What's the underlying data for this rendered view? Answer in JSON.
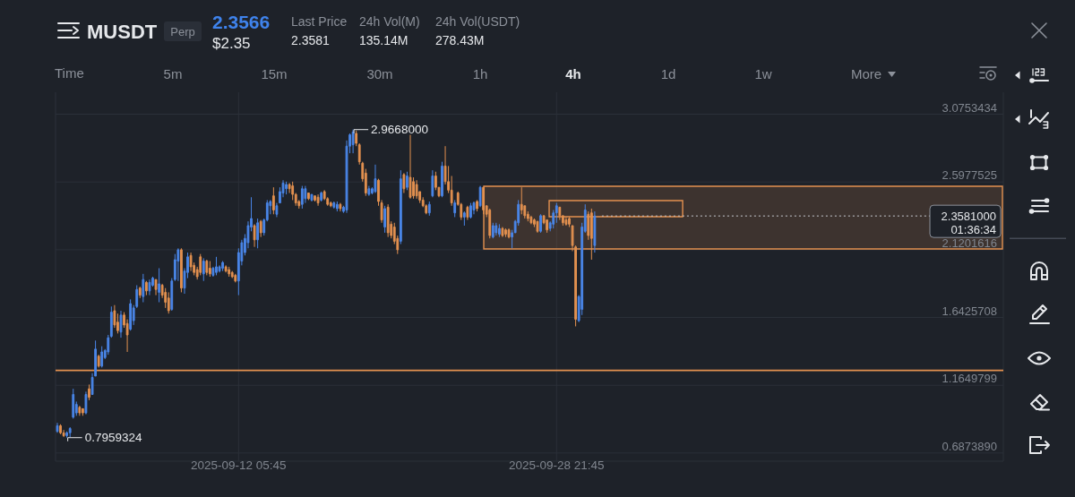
{
  "chart_data": {
    "type": "candlestick",
    "title": "MUSDT",
    "x": [
      "2025-09-02T17:45",
      "2025-09-02T21:45",
      "2025-09-03T01:45",
      "2025-09-03T05:45",
      "2025-09-03T09:45",
      "2025-09-03T13:45",
      "2025-09-03T17:45",
      "2025-09-03T21:45",
      "2025-09-04T01:45",
      "2025-09-04T05:45",
      "2025-09-04T09:45",
      "2025-09-04T13:45",
      "2025-09-04T17:45",
      "2025-09-04T21:45",
      "2025-09-05T01:45",
      "2025-09-05T05:45",
      "2025-09-05T09:45",
      "2025-09-05T13:45",
      "2025-09-05T17:45",
      "2025-09-05T21:45",
      "2025-09-06T01:45",
      "2025-09-06T05:45",
      "2025-09-06T09:45",
      "2025-09-06T13:45",
      "2025-09-06T17:45",
      "2025-09-06T21:45",
      "2025-09-07T01:45",
      "2025-09-07T05:45",
      "2025-09-07T09:45",
      "2025-09-07T13:45",
      "2025-09-07T17:45",
      "2025-09-07T21:45",
      "2025-09-08T01:45",
      "2025-09-08T05:45",
      "2025-09-08T09:45",
      "2025-09-08T13:45",
      "2025-09-08T17:45",
      "2025-09-08T21:45",
      "2025-09-09T01:45",
      "2025-09-09T05:45",
      "2025-09-09T09:45",
      "2025-09-09T13:45",
      "2025-09-09T17:45",
      "2025-09-09T21:45",
      "2025-09-10T01:45",
      "2025-09-10T05:45",
      "2025-09-10T09:45",
      "2025-09-10T13:45",
      "2025-09-10T17:45",
      "2025-09-10T21:45",
      "2025-09-11T01:45",
      "2025-09-11T05:45",
      "2025-09-11T09:45",
      "2025-09-11T13:45",
      "2025-09-11T17:45",
      "2025-09-11T21:45",
      "2025-09-12T01:45",
      "2025-09-12T05:45",
      "2025-09-12T09:45",
      "2025-09-12T13:45",
      "2025-09-12T17:45",
      "2025-09-12T21:45",
      "2025-09-13T01:45",
      "2025-09-13T05:45",
      "2025-09-13T09:45",
      "2025-09-13T13:45",
      "2025-09-13T17:45",
      "2025-09-13T21:45",
      "2025-09-14T01:45",
      "2025-09-14T05:45",
      "2025-09-14T09:45",
      "2025-09-14T13:45",
      "2025-09-14T17:45",
      "2025-09-14T21:45",
      "2025-09-15T01:45",
      "2025-09-15T05:45",
      "2025-09-15T09:45",
      "2025-09-15T13:45",
      "2025-09-15T17:45",
      "2025-09-15T21:45",
      "2025-09-16T01:45",
      "2025-09-16T05:45",
      "2025-09-16T09:45",
      "2025-09-16T13:45",
      "2025-09-16T17:45",
      "2025-09-16T21:45",
      "2025-09-17T01:45",
      "2025-09-17T05:45",
      "2025-09-17T09:45",
      "2025-09-17T13:45",
      "2025-09-17T17:45",
      "2025-09-17T21:45",
      "2025-09-18T01:45",
      "2025-09-18T05:45",
      "2025-09-18T09:45",
      "2025-09-18T13:45",
      "2025-09-18T17:45",
      "2025-09-18T21:45",
      "2025-09-19T01:45",
      "2025-09-19T05:45",
      "2025-09-19T09:45",
      "2025-09-19T13:45",
      "2025-09-19T17:45",
      "2025-09-19T21:45",
      "2025-09-20T01:45",
      "2025-09-20T05:45",
      "2025-09-20T09:45",
      "2025-09-20T13:45",
      "2025-09-20T17:45",
      "2025-09-20T21:45",
      "2025-09-21T01:45",
      "2025-09-21T05:45",
      "2025-09-21T09:45",
      "2025-09-21T13:45",
      "2025-09-21T17:45",
      "2025-09-21T21:45",
      "2025-09-22T01:45",
      "2025-09-22T05:45",
      "2025-09-22T09:45",
      "2025-09-22T13:45",
      "2025-09-22T17:45",
      "2025-09-22T21:45",
      "2025-09-23T01:45",
      "2025-09-23T05:45",
      "2025-09-23T09:45",
      "2025-09-23T13:45",
      "2025-09-23T17:45",
      "2025-09-23T21:45",
      "2025-09-24T01:45",
      "2025-09-24T05:45",
      "2025-09-24T09:45",
      "2025-09-24T13:45",
      "2025-09-24T17:45",
      "2025-09-24T21:45",
      "2025-09-25T01:45",
      "2025-09-25T05:45",
      "2025-09-25T09:45",
      "2025-09-25T13:45",
      "2025-09-25T17:45",
      "2025-09-25T21:45",
      "2025-09-26T01:45",
      "2025-09-26T05:45",
      "2025-09-26T09:45",
      "2025-09-26T13:45",
      "2025-09-26T17:45",
      "2025-09-26T21:45",
      "2025-09-27T01:45",
      "2025-09-27T05:45",
      "2025-09-27T09:45",
      "2025-09-27T13:45",
      "2025-09-27T17:45",
      "2025-09-27T21:45",
      "2025-09-28T01:45",
      "2025-09-28T05:45",
      "2025-09-28T09:45",
      "2025-09-28T13:45",
      "2025-09-28T17:45",
      "2025-09-28T21:45",
      "2025-09-29T01:45",
      "2025-09-29T05:45",
      "2025-09-29T09:45",
      "2025-09-29T13:45",
      "2025-09-29T17:45",
      "2025-09-29T21:45",
      "2025-09-30T01:45",
      "2025-09-30T05:45",
      "2025-09-30T09:45",
      "2025-09-30T13:45",
      "2025-09-30T17:45",
      "2025-09-30T21:45"
    ],
    "ohlc": [
      [
        0.84,
        0.9,
        0.83,
        0.88
      ],
      [
        0.88,
        0.89,
        0.82,
        0.83
      ],
      [
        0.83,
        0.85,
        0.8,
        0.81
      ],
      [
        0.81,
        0.84,
        0.7959324,
        0.83
      ],
      [
        0.83,
        0.87,
        0.8,
        0.86
      ],
      [
        0.94,
        1.14,
        0.93,
        1.1
      ],
      [
        0.97,
        1.05,
        0.95,
        1.03
      ],
      [
        1.01,
        1.02,
        0.95,
        0.97
      ],
      [
        1.0,
        1.0,
        0.95,
        0.97
      ],
      [
        0.97,
        1.12,
        0.96,
        1.1
      ],
      [
        1.14,
        1.17,
        1.06,
        1.08
      ],
      [
        1.1,
        1.25,
        1.1,
        1.22
      ],
      [
        1.23,
        1.48,
        1.23,
        1.42
      ],
      [
        1.37,
        1.38,
        1.29,
        1.3
      ],
      [
        1.3,
        1.44,
        1.29,
        1.4
      ],
      [
        1.36,
        1.42,
        1.35,
        1.41
      ],
      [
        1.4,
        1.52,
        1.38,
        1.5
      ],
      [
        1.51,
        1.72,
        1.5,
        1.68
      ],
      [
        1.69,
        1.73,
        1.57,
        1.59
      ],
      [
        1.61,
        1.67,
        1.53,
        1.55
      ],
      [
        1.54,
        1.69,
        1.5,
        1.66
      ],
      [
        1.66,
        1.68,
        1.57,
        1.59
      ],
      [
        1.6,
        1.63,
        1.4,
        1.52
      ],
      [
        1.56,
        1.77,
        1.55,
        1.74
      ],
      [
        1.62,
        1.73,
        1.59,
        1.71
      ],
      [
        1.72,
        1.87,
        1.71,
        1.84
      ],
      [
        1.85,
        1.86,
        1.78,
        1.8
      ],
      [
        1.79,
        1.95,
        1.75,
        1.91
      ],
      [
        1.89,
        1.9,
        1.8,
        1.83
      ],
      [
        1.83,
        1.91,
        1.8,
        1.89
      ],
      [
        1.87,
        1.93,
        1.86,
        1.92
      ],
      [
        1.91,
        1.91,
        1.8,
        1.84
      ],
      [
        1.82,
        1.99,
        1.75,
        1.88
      ],
      [
        1.87,
        1.88,
        1.78,
        1.8
      ],
      [
        1.82,
        1.85,
        1.71,
        1.75
      ],
      [
        1.78,
        1.82,
        1.67,
        1.69
      ],
      [
        1.7,
        1.92,
        1.69,
        1.9
      ],
      [
        1.91,
        2.09,
        1.9,
        2.05
      ],
      [
        2.04,
        2.13,
        1.9,
        2.12
      ],
      [
        2.12,
        2.13,
        1.82,
        1.85
      ],
      [
        1.85,
        1.99,
        1.81,
        1.97
      ],
      [
        1.96,
        2.1,
        1.92,
        2.07
      ],
      [
        2.08,
        2.1,
        1.97,
        2.0
      ],
      [
        2.01,
        2.03,
        1.94,
        1.96
      ],
      [
        1.98,
        2.0,
        1.91,
        1.93
      ],
      [
        2.07,
        2.09,
        1.94,
        1.96
      ],
      [
        1.95,
        2.06,
        1.9,
        2.04
      ],
      [
        2.04,
        2.05,
        1.94,
        1.96
      ],
      [
        1.99,
        2.04,
        1.93,
        1.95
      ],
      [
        1.94,
        2.0,
        1.93,
        1.99
      ],
      [
        1.96,
        2.07,
        1.94,
        2.0
      ],
      [
        1.97,
        2.01,
        1.96,
        2.0
      ],
      [
        1.99,
        2.04,
        1.97,
        2.03
      ],
      [
        2.0,
        2.01,
        1.96,
        1.97
      ],
      [
        1.98,
        2.0,
        1.93,
        1.95
      ],
      [
        1.96,
        1.97,
        1.92,
        1.93
      ],
      [
        1.94,
        1.95,
        1.89,
        1.9
      ],
      [
        1.9,
        2.13,
        1.8,
        2.1
      ],
      [
        2.04,
        2.19,
        2.01,
        2.17
      ],
      [
        2.1,
        2.23,
        2.08,
        2.2
      ],
      [
        2.17,
        2.32,
        2.13,
        2.29
      ],
      [
        2.28,
        2.49,
        2.25,
        2.34
      ],
      [
        2.29,
        2.3,
        2.14,
        2.19
      ],
      [
        2.19,
        2.34,
        2.13,
        2.31
      ],
      [
        2.32,
        2.33,
        2.21,
        2.24
      ],
      [
        2.24,
        2.34,
        2.22,
        2.33
      ],
      [
        2.33,
        2.47,
        2.32,
        2.45
      ],
      [
        2.43,
        2.47,
        2.37,
        2.46
      ],
      [
        2.5,
        2.56,
        2.37,
        2.4
      ],
      [
        2.37,
        2.45,
        2.35,
        2.43
      ],
      [
        2.45,
        2.56,
        2.45,
        2.53
      ],
      [
        2.52,
        2.61,
        2.49,
        2.59
      ],
      [
        2.55,
        2.6,
        2.51,
        2.58
      ],
      [
        2.58,
        2.59,
        2.52,
        2.55
      ],
      [
        2.57,
        2.6,
        2.47,
        2.51
      ],
      [
        2.51,
        2.52,
        2.43,
        2.45
      ],
      [
        2.46,
        2.47,
        2.41,
        2.43
      ],
      [
        2.44,
        2.57,
        2.41,
        2.55
      ],
      [
        2.48,
        2.57,
        2.45,
        2.55
      ],
      [
        2.52,
        2.52,
        2.47,
        2.48
      ],
      [
        2.47,
        2.51,
        2.46,
        2.51
      ],
      [
        2.5,
        2.5,
        2.46,
        2.47
      ],
      [
        2.49,
        2.51,
        2.43,
        2.45
      ],
      [
        2.47,
        2.53,
        2.46,
        2.52
      ],
      [
        2.53,
        2.54,
        2.47,
        2.48
      ],
      [
        2.48,
        2.49,
        2.43,
        2.44
      ],
      [
        2.45,
        2.46,
        2.42,
        2.43
      ],
      [
        2.42,
        2.46,
        2.41,
        2.45
      ],
      [
        2.41,
        2.46,
        2.39,
        2.44
      ],
      [
        2.44,
        2.45,
        2.39,
        2.41
      ],
      [
        2.39,
        2.43,
        2.38,
        2.42
      ],
      [
        2.4,
        2.89,
        2.38,
        2.85
      ],
      [
        2.85,
        2.94,
        2.8,
        2.93
      ],
      [
        2.86,
        2.9668,
        2.8,
        2.95
      ],
      [
        2.94,
        2.96,
        2.85,
        2.87
      ],
      [
        2.86,
        2.87,
        2.72,
        2.74
      ],
      [
        2.73,
        2.74,
        2.6,
        2.62
      ],
      [
        2.66,
        2.69,
        2.5,
        2.52
      ],
      [
        2.51,
        2.57,
        2.5,
        2.55
      ],
      [
        2.52,
        2.56,
        2.51,
        2.55
      ],
      [
        2.53,
        2.72,
        2.52,
        2.62
      ],
      [
        2.61,
        2.62,
        2.43,
        2.46
      ],
      [
        2.45,
        2.47,
        2.31,
        2.33
      ],
      [
        2.28,
        2.43,
        2.24,
        2.41
      ],
      [
        2.42,
        2.44,
        2.21,
        2.24
      ],
      [
        2.3,
        2.32,
        2.2,
        2.22
      ],
      [
        2.28,
        2.31,
        2.16,
        2.18
      ],
      [
        2.2,
        2.22,
        2.09,
        2.12
      ],
      [
        2.18,
        2.68,
        2.16,
        2.62
      ],
      [
        2.65,
        2.66,
        2.52,
        2.55
      ],
      [
        2.56,
        2.67,
        2.54,
        2.64
      ],
      [
        2.63,
        2.93,
        2.48,
        2.49
      ],
      [
        2.6,
        2.63,
        2.48,
        2.5
      ],
      [
        2.58,
        2.61,
        2.48,
        2.5
      ],
      [
        2.53,
        2.53,
        2.45,
        2.47
      ],
      [
        2.47,
        2.49,
        2.42,
        2.43
      ],
      [
        2.43,
        2.44,
        2.37,
        2.38
      ],
      [
        2.38,
        2.46,
        2.36,
        2.44
      ],
      [
        2.5,
        2.68,
        2.49,
        2.64
      ],
      [
        2.64,
        2.67,
        2.54,
        2.56
      ],
      [
        2.56,
        2.56,
        2.49,
        2.5
      ],
      [
        2.5,
        2.74,
        2.49,
        2.71
      ],
      [
        2.71,
        2.85,
        2.58,
        2.6
      ],
      [
        2.6,
        2.71,
        2.52,
        2.54
      ],
      [
        2.54,
        2.64,
        2.43,
        2.45
      ],
      [
        2.38,
        2.47,
        2.35,
        2.45
      ],
      [
        2.52,
        2.53,
        2.43,
        2.44
      ],
      [
        2.44,
        2.45,
        2.33,
        2.35
      ],
      [
        2.35,
        2.39,
        2.29,
        2.38
      ],
      [
        2.42,
        2.43,
        2.33,
        2.35
      ],
      [
        2.35,
        2.45,
        2.34,
        2.43
      ],
      [
        2.4,
        2.46,
        2.37,
        2.45
      ],
      [
        2.46,
        2.47,
        2.39,
        2.41
      ],
      [
        2.43,
        2.57,
        2.42,
        2.56
      ],
      [
        2.56,
        2.56,
        2.37,
        2.4
      ],
      [
        2.43,
        2.43,
        2.35,
        2.37
      ],
      [
        2.4,
        2.41,
        2.2,
        2.22
      ],
      [
        2.21,
        2.31,
        2.2,
        2.29
      ],
      [
        2.24,
        2.31,
        2.22,
        2.29
      ],
      [
        2.23,
        2.3,
        2.21,
        2.27
      ],
      [
        2.27,
        2.28,
        2.21,
        2.22
      ],
      [
        2.26,
        2.27,
        2.21,
        2.23
      ],
      [
        2.26,
        2.27,
        2.2,
        2.21
      ],
      [
        2.21,
        2.26,
        2.13,
        2.24
      ],
      [
        2.24,
        2.33,
        2.24,
        2.32
      ],
      [
        2.31,
        2.47,
        2.29,
        2.44
      ],
      [
        2.44,
        2.56,
        2.37,
        2.4
      ],
      [
        2.43,
        2.43,
        2.34,
        2.36
      ],
      [
        2.37,
        2.39,
        2.32,
        2.34
      ],
      [
        2.35,
        2.36,
        2.3,
        2.31
      ],
      [
        2.33,
        2.34,
        2.28,
        2.3
      ],
      [
        2.32,
        2.32,
        2.24,
        2.25
      ],
      [
        2.25,
        2.37,
        2.24,
        2.36
      ],
      [
        2.36,
        2.36,
        2.3,
        2.31
      ],
      [
        2.33,
        2.33,
        2.24,
        2.26
      ],
      [
        2.27,
        2.32,
        2.25,
        2.31
      ],
      [
        2.3,
        2.4,
        2.27,
        2.38
      ],
      [
        2.38,
        2.45,
        2.31,
        2.43
      ],
      [
        2.42,
        2.42,
        2.33,
        2.36
      ],
      [
        2.36,
        2.36,
        2.29,
        2.31
      ],
      [
        2.33,
        2.35,
        2.29,
        2.3
      ],
      [
        2.34,
        2.35,
        2.28,
        2.3
      ],
      [
        2.29,
        2.29,
        2.11,
        2.15
      ],
      [
        2.14,
        2.15,
        1.58,
        1.63
      ],
      [
        1.62,
        1.8,
        1.61,
        1.79
      ],
      [
        1.7,
        2.31,
        1.66,
        2.28
      ],
      [
        2.25,
        2.44,
        2.24,
        2.4
      ],
      [
        2.37,
        2.39,
        2.19,
        2.22
      ],
      [
        2.38,
        2.41,
        2.05,
        2.2
      ],
      [
        2.15,
        2.39,
        2.1,
        2.3581
      ]
    ],
    "colors": [
      "#4a86e8",
      "#e39150",
      "#e39150",
      "#4a86e8",
      "#4a86e8",
      "#4a86e8",
      "#4a86e8",
      "#e39150",
      "#e39150",
      "#4a86e8",
      "#e39150",
      "#4a86e8",
      "#4a86e8",
      "#e39150",
      "#4a86e8",
      "#4a86e8",
      "#4a86e8",
      "#4a86e8",
      "#e39150",
      "#e39150",
      "#4a86e8",
      "#e39150",
      "#e39150",
      "#4a86e8",
      "#4a86e8",
      "#4a86e8",
      "#e39150",
      "#4a86e8",
      "#e39150",
      "#4a86e8",
      "#4a86e8",
      "#e39150",
      "#4a86e8",
      "#e39150",
      "#e39150",
      "#e39150",
      "#4a86e8",
      "#4a86e8",
      "#4a86e8",
      "#e39150",
      "#4a86e8",
      "#4a86e8",
      "#e39150",
      "#e39150",
      "#e39150",
      "#e39150",
      "#4a86e8",
      "#e39150",
      "#e39150",
      "#4a86e8",
      "#4a86e8",
      "#4a86e8",
      "#4a86e8",
      "#e39150",
      "#e39150",
      "#e39150",
      "#e39150",
      "#4a86e8",
      "#4a86e8",
      "#4a86e8",
      "#4a86e8",
      "#4a86e8",
      "#e39150",
      "#4a86e8",
      "#e39150",
      "#4a86e8",
      "#4a86e8",
      "#4a86e8",
      "#e39150",
      "#4a86e8",
      "#4a86e8",
      "#4a86e8",
      "#4a86e8",
      "#e39150",
      "#e39150",
      "#e39150",
      "#e39150",
      "#4a86e8",
      "#4a86e8",
      "#e39150",
      "#4a86e8",
      "#e39150",
      "#e39150",
      "#4a86e8",
      "#e39150",
      "#e39150",
      "#e39150",
      "#4a86e8",
      "#4a86e8",
      "#e39150",
      "#4a86e8",
      "#4a86e8",
      "#4a86e8",
      "#4a86e8",
      "#e39150",
      "#e39150",
      "#e39150",
      "#e39150",
      "#4a86e8",
      "#4a86e8",
      "#4a86e8",
      "#e39150",
      "#e39150",
      "#4a86e8",
      "#e39150",
      "#e39150",
      "#e39150",
      "#e39150",
      "#4a86e8",
      "#e39150",
      "#4a86e8",
      "#e39150",
      "#e39150",
      "#e39150",
      "#e39150",
      "#e39150",
      "#e39150",
      "#4a86e8",
      "#4a86e8",
      "#e39150",
      "#e39150",
      "#4a86e8",
      "#e39150",
      "#e39150",
      "#e39150",
      "#4a86e8",
      "#e39150",
      "#e39150",
      "#4a86e8",
      "#e39150",
      "#4a86e8",
      "#4a86e8",
      "#e39150",
      "#4a86e8",
      "#e39150",
      "#e39150",
      "#e39150",
      "#4a86e8",
      "#4a86e8",
      "#4a86e8",
      "#e39150",
      "#e39150",
      "#e39150",
      "#4a86e8",
      "#4a86e8",
      "#4a86e8",
      "#e39150",
      "#e39150",
      "#e39150",
      "#e39150",
      "#e39150",
      "#e39150",
      "#4a86e8",
      "#e39150",
      "#e39150",
      "#4a86e8",
      "#4a86e8",
      "#4a86e8",
      "#e39150",
      "#e39150",
      "#e39150",
      "#e39150",
      "#e39150",
      "#e39150",
      "#4a86e8",
      "#4a86e8",
      "#4a86e8",
      "#e39150",
      "#e39150",
      "#4a86e8"
    ],
    "xlim": [
      "2025-09-02T15:30",
      "2025-10-22T07:45"
    ],
    "ylim": [
      0.63,
      3.23
    ],
    "xticks": [
      {
        "value": "2025-09-12T05:45",
        "label": "2025-09-12 05:45"
      },
      {
        "value": "2025-09-28T21:45",
        "label": "2025-09-28 21:45"
      }
    ],
    "yticks": [
      {
        "value": 0.687389,
        "label": "0.6873890"
      },
      1.1649799,
      1.6425708,
      2.1201616,
      2.5977525,
      3.0753434
    ],
    "grid": true,
    "ref_lines": [
      {
        "axis": "y",
        "value": 1.27,
        "color": "#e39150"
      },
      {
        "axis": "y",
        "value": 2.3581,
        "label": "2.3581000",
        "line_style": "dotted",
        "color": "#c9ccd1"
      }
    ],
    "annotations": [
      {
        "text": "2.9668000",
        "x": "2025-09-18T05:45",
        "y": 2.9668
      },
      {
        "text": "0.7959324",
        "x": "2025-09-03T05:45",
        "y": 0.7959324
      },
      "01:36:34",
      "Perp",
      "2.3566",
      "$2.35",
      "Last Price",
      "2.3581",
      "24h Vol(M)",
      "135.14M",
      "24h Vol(USDT)",
      "278.43M",
      "Time",
      "5m",
      "15m",
      "30m",
      "1h",
      "4h",
      "1d",
      "1w",
      "More"
    ]
  }
}
